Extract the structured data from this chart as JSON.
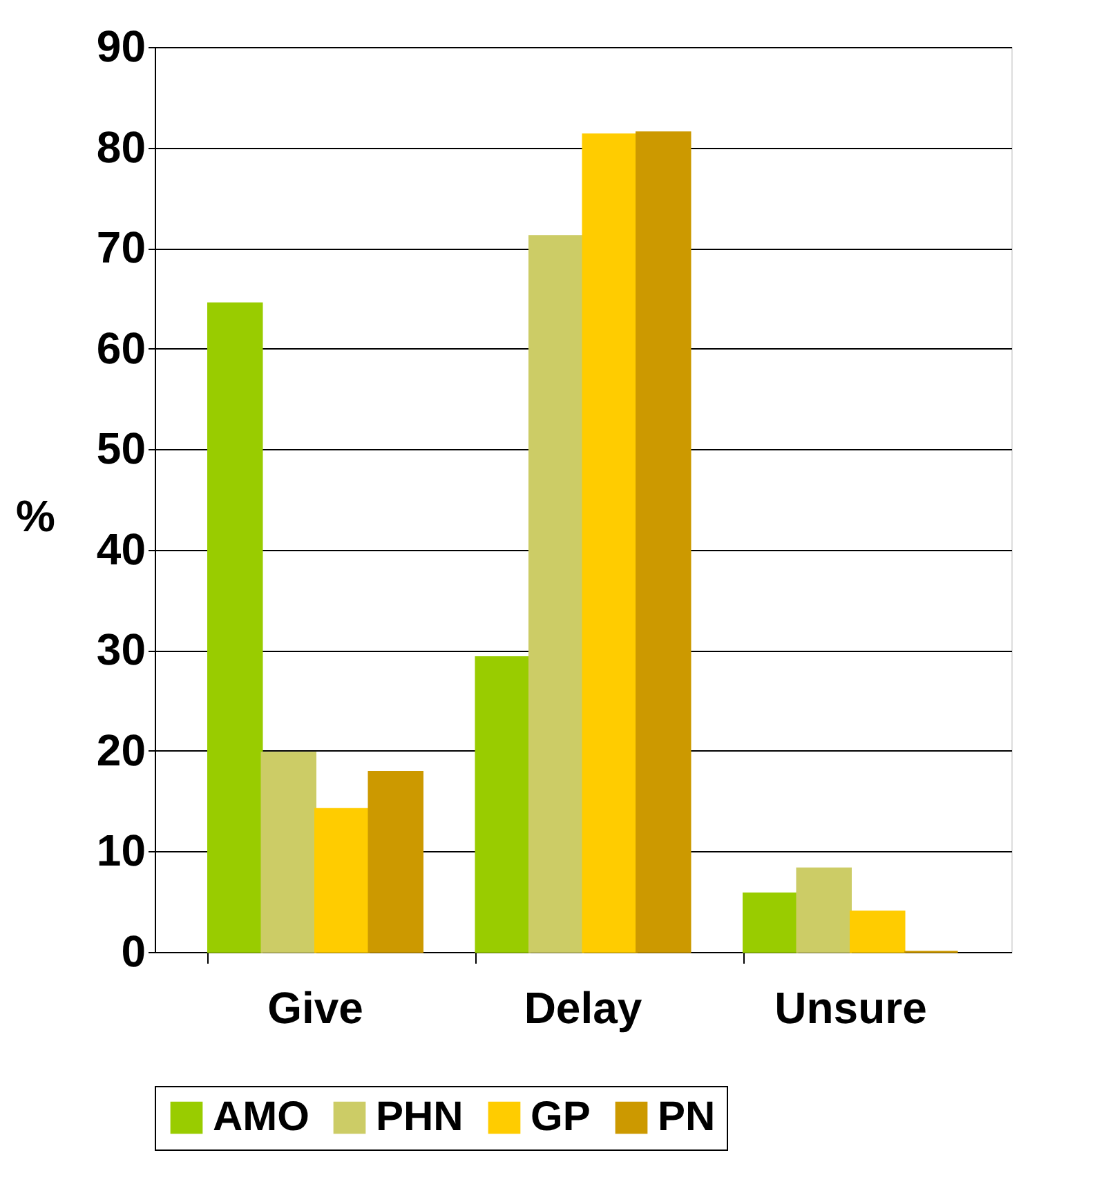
{
  "chart_data": {
    "type": "bar",
    "ylabel": "%",
    "categories": [
      "Give",
      "Delay",
      "Unsure"
    ],
    "series": [
      {
        "name": "AMO",
        "color": "#99cc00",
        "values": [
          64.5,
          29.3,
          5.8
        ]
      },
      {
        "name": "PHN",
        "color": "#cccc66",
        "values": [
          19.8,
          71.2,
          8.3
        ]
      },
      {
        "name": "GP",
        "color": "#ffcc00",
        "values": [
          14.2,
          81.3,
          4
        ]
      },
      {
        "name": "PN",
        "color": "#cc9900",
        "values": [
          17.9,
          81.5,
          0
        ]
      }
    ],
    "ylim": [
      0,
      90
    ],
    "yticks": [
      0,
      10,
      20,
      30,
      40,
      50,
      60,
      70,
      80,
      90
    ],
    "grid": "y",
    "legend": "bottom"
  }
}
